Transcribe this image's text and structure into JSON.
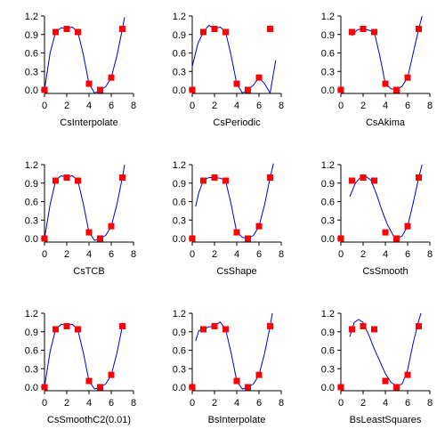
{
  "colors": {
    "curve": "#0000cc",
    "points": "#ff0000",
    "axis": "#000000"
  },
  "axes": {
    "xlim": [
      0,
      8
    ],
    "ylim": [
      0,
      1.2
    ],
    "xticks": [
      0,
      2,
      4,
      6,
      8
    ],
    "yticks": [
      0.0,
      0.3,
      0.6,
      0.9,
      1.2
    ],
    "ytick_labels": [
      "0.0",
      "0.3",
      "0.6",
      "0.9",
      "1.2"
    ],
    "xtick_labels": [
      "0",
      "2",
      "4",
      "6",
      "8"
    ]
  },
  "chart_data": [
    {
      "type": "line",
      "title": "CsInterpolate",
      "xlim": [
        0,
        8
      ],
      "ylim": [
        0,
        1.2
      ],
      "points": {
        "x": [
          0,
          1,
          2,
          3,
          4,
          5,
          6,
          7
        ],
        "y": [
          0,
          0.94,
          0.99,
          0.94,
          0.1,
          0,
          0.2,
          0.99
        ]
      },
      "curve": {
        "x": [
          0,
          0.5,
          1,
          1.5,
          2,
          2.5,
          3,
          3.5,
          4,
          4.5,
          5,
          5.5,
          6,
          6.5,
          7,
          7.2
        ],
        "y": [
          0,
          0.6,
          0.94,
          1.01,
          0.99,
          1.02,
          0.94,
          0.56,
          0.1,
          -0.05,
          0,
          0.05,
          0.2,
          0.55,
          0.99,
          1.18
        ]
      }
    },
    {
      "type": "line",
      "title": "CsPeriodic",
      "xlim": [
        0,
        8
      ],
      "ylim": [
        0,
        1.2
      ],
      "points": {
        "x": [
          0,
          1,
          2,
          3,
          4,
          5,
          6,
          7
        ],
        "y": [
          0,
          0.94,
          0.99,
          0.94,
          0.1,
          0,
          0.2,
          0.99
        ]
      },
      "curve": {
        "x": [
          0,
          0.5,
          1,
          1.5,
          2,
          2.5,
          3,
          3.5,
          4,
          4.5,
          5,
          5.5,
          6,
          6.5,
          7,
          7.5
        ],
        "y": [
          0.38,
          0.75,
          0.94,
          1.05,
          0.99,
          1.02,
          0.94,
          0.55,
          0.1,
          -0.05,
          0,
          0.08,
          0.2,
          0.1,
          -0.05,
          0.48
        ]
      }
    },
    {
      "type": "line",
      "title": "CsAkima",
      "xlim": [
        0,
        8
      ],
      "ylim": [
        0,
        1.2
      ],
      "points": {
        "x": [
          0,
          1,
          2,
          3,
          4,
          5,
          6,
          7
        ],
        "y": [
          0,
          0.94,
          0.99,
          0.94,
          0.1,
          0,
          0.2,
          0.99
        ]
      },
      "curve": {
        "x": [
          1,
          1.5,
          2,
          2.5,
          3,
          3.5,
          4,
          4.5,
          5,
          5.5,
          6,
          6.5,
          7,
          7.3
        ],
        "y": [
          0.88,
          0.98,
          0.99,
          0.97,
          0.94,
          0.55,
          0.1,
          0.02,
          0,
          0.06,
          0.2,
          0.6,
          0.99,
          1.2
        ]
      }
    },
    {
      "type": "line",
      "title": "CsTCB",
      "xlim": [
        0,
        8
      ],
      "ylim": [
        0,
        1.2
      ],
      "points": {
        "x": [
          0,
          1,
          2,
          3,
          4,
          5,
          6,
          7
        ],
        "y": [
          0,
          0.94,
          0.99,
          0.94,
          0.1,
          0,
          0.2,
          0.99
        ]
      },
      "curve": {
        "x": [
          0,
          0.5,
          1,
          1.5,
          2,
          2.5,
          3,
          3.5,
          4,
          4.5,
          5,
          5.5,
          6,
          6.5,
          7,
          7.2
        ],
        "y": [
          0,
          0.55,
          0.94,
          1.02,
          0.99,
          1.02,
          0.94,
          0.55,
          0.1,
          -0.03,
          0,
          0.05,
          0.2,
          0.55,
          0.99,
          1.2
        ]
      }
    },
    {
      "type": "line",
      "title": "CsShape",
      "xlim": [
        0,
        8
      ],
      "ylim": [
        0,
        1.2
      ],
      "points": {
        "x": [
          0,
          1,
          2,
          3,
          4,
          5,
          6,
          7
        ],
        "y": [
          0,
          0.94,
          0.99,
          0.94,
          0.1,
          0,
          0.2,
          0.99
        ]
      },
      "curve": {
        "x": [
          0.3,
          0.6,
          1,
          1.5,
          2,
          2.5,
          3,
          3.5,
          4,
          4.5,
          5,
          5.5,
          6,
          6.5,
          7,
          7.3
        ],
        "y": [
          0.52,
          0.75,
          0.94,
          0.99,
          0.99,
          0.98,
          0.94,
          0.55,
          0.1,
          0.02,
          0,
          0.05,
          0.2,
          0.55,
          0.99,
          1.22
        ]
      }
    },
    {
      "type": "line",
      "title": "CsSmooth",
      "xlim": [
        0,
        8
      ],
      "ylim": [
        0,
        1.2
      ],
      "points": {
        "x": [
          0,
          1,
          2,
          3,
          4,
          5,
          6,
          7
        ],
        "y": [
          0,
          0.94,
          0.99,
          0.94,
          0.1,
          0,
          0.2,
          0.99
        ]
      },
      "curve": {
        "x": [
          0.8,
          1.3,
          2,
          2.7,
          3.2,
          3.7,
          4.2,
          4.7,
          5,
          5.5,
          6,
          6.5,
          7,
          7.3
        ],
        "y": [
          0.68,
          0.9,
          1.04,
          0.95,
          0.72,
          0.45,
          0.22,
          0.05,
          0,
          0.04,
          0.2,
          0.58,
          0.99,
          1.2
        ]
      }
    },
    {
      "type": "line",
      "title": "CsSmoothC2(0.01)",
      "xlim": [
        0,
        8
      ],
      "ylim": [
        0,
        1.2
      ],
      "points": {
        "x": [
          0,
          1,
          2,
          3,
          4,
          5,
          6,
          7
        ],
        "y": [
          0,
          0.94,
          0.99,
          0.94,
          0.1,
          0,
          0.2,
          0.99
        ]
      },
      "curve": {
        "x": [
          0,
          0.5,
          1,
          1.5,
          2,
          2.5,
          3,
          3.5,
          4,
          4.5,
          5,
          5.5,
          6,
          6.5,
          7
        ],
        "y": [
          0,
          0.58,
          0.94,
          1.02,
          1.0,
          1.02,
          0.93,
          0.55,
          0.1,
          -0.03,
          0,
          0.05,
          0.2,
          0.55,
          0.99
        ]
      }
    },
    {
      "type": "line",
      "title": "BsInterpolate",
      "xlim": [
        0,
        8
      ],
      "ylim": [
        0,
        1.2
      ],
      "points": {
        "x": [
          0,
          1,
          2,
          3,
          4,
          5,
          6,
          7
        ],
        "y": [
          0,
          0.94,
          0.99,
          0.94,
          0.1,
          0,
          0.2,
          0.99
        ]
      },
      "curve": {
        "x": [
          0.3,
          0.6,
          1,
          1.5,
          2,
          2.5,
          3,
          3.5,
          4,
          4.5,
          5,
          5.5,
          6,
          6.5,
          7,
          7.2
        ],
        "y": [
          0.75,
          0.92,
          0.94,
          0.98,
          0.99,
          1.06,
          0.94,
          0.55,
          0.1,
          -0.03,
          0,
          0.05,
          0.2,
          0.55,
          0.99,
          1.2
        ]
      }
    },
    {
      "type": "line",
      "title": "BsLeastSquares",
      "xlim": [
        0,
        8
      ],
      "ylim": [
        0,
        1.2
      ],
      "points": {
        "x": [
          0,
          1,
          2,
          3,
          4,
          5,
          6,
          7
        ],
        "y": [
          0,
          0.94,
          0.99,
          0.94,
          0.1,
          0,
          0.2,
          0.99
        ]
      },
      "curve": {
        "x": [
          0.8,
          1.2,
          1.6,
          2,
          2.5,
          3,
          3.5,
          4,
          4.5,
          5,
          5.5,
          6,
          6.5,
          7,
          7.2
        ],
        "y": [
          0.82,
          1.05,
          1.1,
          1.05,
          0.85,
          0.62,
          0.42,
          0.22,
          0.08,
          0.02,
          0.05,
          0.28,
          0.72,
          1.08,
          1.2
        ]
      }
    }
  ]
}
